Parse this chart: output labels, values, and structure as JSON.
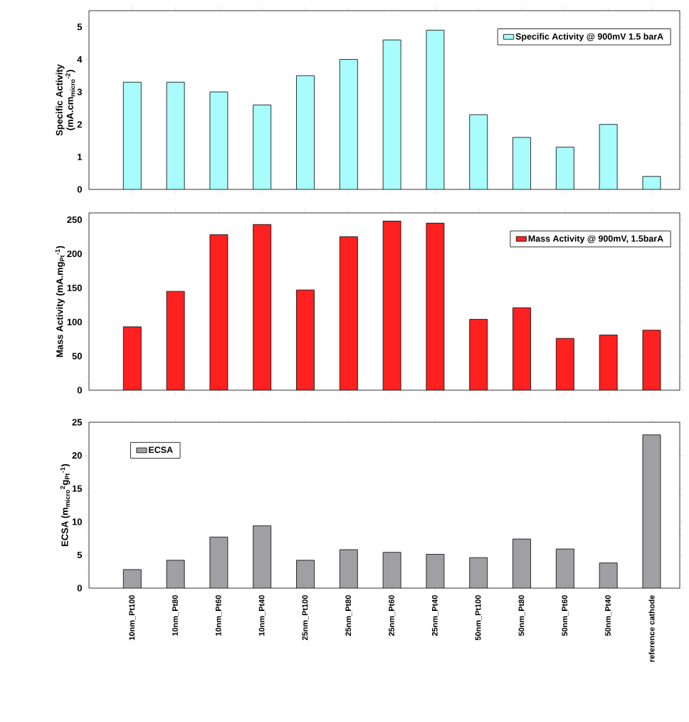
{
  "chart_data": [
    {
      "type": "bar",
      "categories": [
        null,
        null,
        null,
        null,
        null,
        null,
        null,
        null,
        null,
        null,
        null,
        null,
        null
      ],
      "ylabel": "Specific Activity (mA.cm$_{micro}$$^{-2}$)",
      "series": [
        {
          "name": "Specific Activity @ 900mV 1.5 barA",
          "color": "#a8fcfc",
          "values": [
            3.3,
            3.3,
            3.0,
            2.6,
            3.5,
            4.0,
            4.6,
            4.9,
            2.3,
            1.6,
            1.3,
            2.0,
            0.4
          ]
        }
      ],
      "ylim": [
        0,
        5.5
      ],
      "yticks": [
        0,
        1,
        2,
        3,
        4,
        5
      ],
      "legend": "top right",
      "tick_labels": "y"
    },
    {
      "type": "bar",
      "categories": [
        null,
        null,
        null,
        null,
        null,
        null,
        null,
        null,
        null,
        null,
        null,
        null,
        null
      ],
      "ylabel": "Mass Activity (mA.mg$_{Pt}$$^{-1}$)",
      "series": [
        {
          "name": "Mass Activity @ 900mV, 1.5barA",
          "color": "#ff2020",
          "values": [
            93,
            145,
            228,
            243,
            147,
            225,
            248,
            245,
            104,
            121,
            76,
            81,
            88
          ]
        }
      ],
      "ylim": [
        0,
        260
      ],
      "yticks": [
        0,
        50,
        100,
        150,
        200,
        250
      ],
      "legend": "top right",
      "tick_labels": "y"
    },
    {
      "type": "bar",
      "categories": [
        "10nm_Pt100",
        "10nm_Pt80",
        "10nm_Pt60",
        "10nm_Pt40",
        "25nm_Pt100",
        "25nm_Pt80",
        "25nm_Pt60",
        "25nm_Pt40",
        "50nm_Pt100",
        "50nm_Pt80",
        "50nm_Pt60",
        "50nm_Pt40",
        "reference cathode"
      ],
      "ylabel": "ECSA (m$_{micro}$$^{2}$g$_{Pt}$$^{-1}$)",
      "series": [
        {
          "name": "ECSA",
          "color": "#a0a0a4",
          "values": [
            2.8,
            4.2,
            7.7,
            9.4,
            4.2,
            5.8,
            5.4,
            5.1,
            4.6,
            7.4,
            5.9,
            3.8,
            23.1
          ]
        }
      ],
      "ylim": [
        0,
        25
      ],
      "yticks": [
        0,
        5,
        10,
        15,
        20,
        25
      ],
      "legend": "top left"
    }
  ]
}
